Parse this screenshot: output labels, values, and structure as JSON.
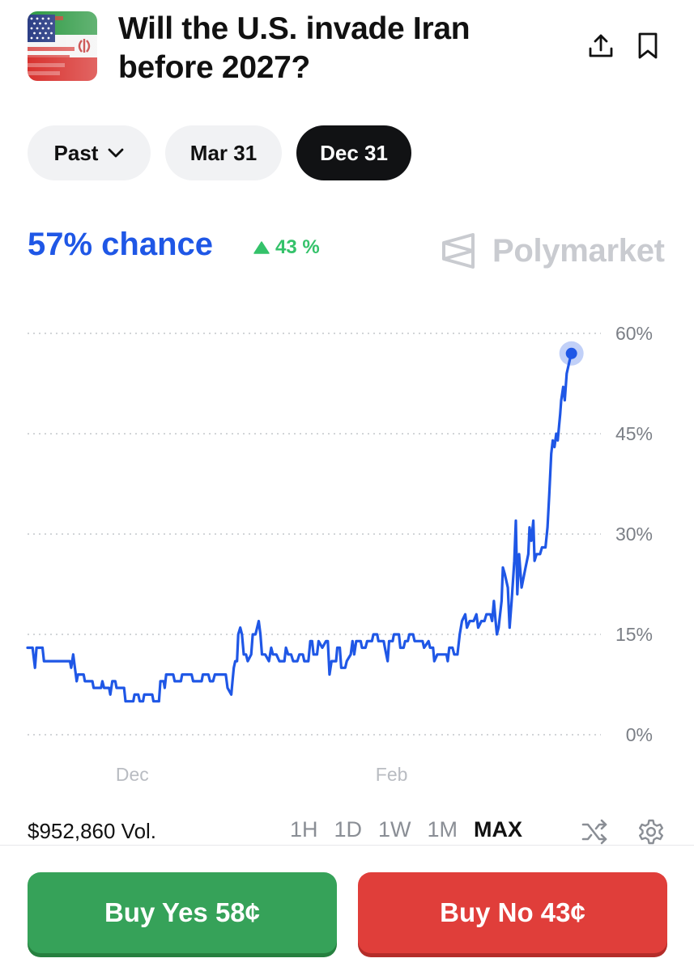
{
  "header": {
    "title": "Will the U.S. invade Iran before 2027?",
    "icon": "us-iran-flag-icon",
    "actions": [
      "share-icon",
      "bookmark-icon"
    ]
  },
  "date_filters": {
    "past_label": "Past",
    "options": [
      "Mar 31",
      "Dec 31"
    ],
    "selected": "Dec 31"
  },
  "summary": {
    "chance": "57% chance",
    "delta": "43 %",
    "delta_direction": "up",
    "brand": "Polymarket"
  },
  "colors": {
    "accent_blue": "#1f57e6",
    "positive_green": "#34c26a",
    "buy_yes": "#36a259",
    "buy_no": "#e03e3a",
    "active_pill": "#111214"
  },
  "chart_data": {
    "type": "line",
    "series": [
      {
        "values": [
          [
            0,
            13
          ],
          [
            2,
            13
          ],
          [
            3,
            10
          ],
          [
            3.6,
            13
          ],
          [
            6,
            13
          ],
          [
            6.6,
            11
          ],
          [
            17,
            11
          ],
          [
            17.5,
            10
          ],
          [
            18.3,
            12
          ],
          [
            19,
            10
          ],
          [
            19.7,
            8
          ],
          [
            20.2,
            9
          ],
          [
            22.5,
            9
          ],
          [
            23,
            8
          ],
          [
            26,
            8
          ],
          [
            26.5,
            7
          ],
          [
            29.5,
            7
          ],
          [
            30,
            8
          ],
          [
            30.7,
            7
          ],
          [
            32.7,
            7
          ],
          [
            33.2,
            6
          ],
          [
            34,
            8
          ],
          [
            35.2,
            8
          ],
          [
            35.7,
            7
          ],
          [
            38.7,
            7
          ],
          [
            39.3,
            5
          ],
          [
            42.4,
            5
          ],
          [
            42.9,
            6
          ],
          [
            44.4,
            6
          ],
          [
            45,
            5
          ],
          [
            46.3,
            5
          ],
          [
            46.8,
            6
          ],
          [
            50,
            6
          ],
          [
            50.5,
            5
          ],
          [
            52.7,
            5
          ],
          [
            53.3,
            8
          ],
          [
            54.6,
            8
          ],
          [
            55,
            7
          ],
          [
            55.6,
            9
          ],
          [
            58.4,
            9
          ],
          [
            59,
            8
          ],
          [
            61.5,
            8
          ],
          [
            62,
            9
          ],
          [
            65.8,
            9
          ],
          [
            66.4,
            8
          ],
          [
            69.8,
            8
          ],
          [
            70.3,
            9
          ],
          [
            72.5,
            9
          ],
          [
            73.2,
            8
          ],
          [
            74.4,
            8
          ],
          [
            75.1,
            9
          ],
          [
            79.5,
            9
          ],
          [
            80.2,
            7
          ],
          [
            81.7,
            6
          ],
          [
            82.2,
            8
          ],
          [
            82.7,
            10
          ],
          [
            83.3,
            11
          ],
          [
            84,
            11
          ],
          [
            84.5,
            15
          ],
          [
            85.3,
            16
          ],
          [
            86,
            15
          ],
          [
            86.7,
            12
          ],
          [
            87.6,
            12
          ],
          [
            88.3,
            11
          ],
          [
            89.7,
            12
          ],
          [
            90.3,
            15
          ],
          [
            91.4,
            15
          ],
          [
            92.7,
            17
          ],
          [
            93.4,
            15
          ],
          [
            94,
            12
          ],
          [
            95.3,
            12
          ],
          [
            96.8,
            11
          ],
          [
            97.7,
            13
          ],
          [
            98.4,
            12
          ],
          [
            99.8,
            12
          ],
          [
            101,
            11
          ],
          [
            103,
            11
          ],
          [
            103.6,
            13
          ],
          [
            104.5,
            12
          ],
          [
            105.7,
            12
          ],
          [
            106.5,
            11
          ],
          [
            108.2,
            11
          ],
          [
            109,
            12
          ],
          [
            110.4,
            12
          ],
          [
            111,
            11
          ],
          [
            112.6,
            11
          ],
          [
            113.4,
            14
          ],
          [
            114.1,
            14
          ],
          [
            114.7,
            12
          ],
          [
            116.1,
            12
          ],
          [
            116.7,
            14
          ],
          [
            118.2,
            13
          ],
          [
            119.7,
            14
          ],
          [
            120.4,
            14
          ],
          [
            121.1,
            9
          ],
          [
            121.9,
            11
          ],
          [
            123.7,
            11
          ],
          [
            124.2,
            13
          ],
          [
            125.2,
            13
          ],
          [
            125.8,
            10
          ],
          [
            127.4,
            10
          ],
          [
            128,
            11
          ],
          [
            129.6,
            12
          ],
          [
            130.3,
            14
          ],
          [
            131,
            12
          ],
          [
            131.8,
            14
          ],
          [
            133.6,
            14
          ],
          [
            134.1,
            13
          ],
          [
            135.5,
            13
          ],
          [
            136.2,
            14
          ],
          [
            138.1,
            14
          ],
          [
            138.7,
            15
          ],
          [
            140.2,
            15
          ],
          [
            140.7,
            14
          ],
          [
            142.8,
            14
          ],
          [
            143.3,
            13
          ],
          [
            144.4,
            11
          ],
          [
            145,
            14
          ],
          [
            146.4,
            14
          ],
          [
            146.9,
            15
          ],
          [
            148.9,
            15
          ],
          [
            149.5,
            13
          ],
          [
            150.8,
            13
          ],
          [
            151.4,
            14
          ],
          [
            152.5,
            14
          ],
          [
            153.1,
            15
          ],
          [
            154.6,
            15
          ],
          [
            155.2,
            14
          ],
          [
            158.4,
            14
          ],
          [
            159,
            13
          ],
          [
            160.8,
            14
          ],
          [
            161.4,
            13
          ],
          [
            162.6,
            13
          ],
          [
            163.1,
            11
          ],
          [
            164.3,
            12
          ],
          [
            166.5,
            12
          ],
          [
            168,
            12
          ],
          [
            168.5,
            11
          ],
          [
            169.1,
            13
          ],
          [
            170.4,
            13
          ],
          [
            171.1,
            12
          ],
          [
            172.4,
            12
          ],
          [
            173.3,
            15
          ],
          [
            174.2,
            17
          ],
          [
            175.5,
            18
          ],
          [
            176.2,
            16
          ],
          [
            177.3,
            17
          ],
          [
            178.9,
            17
          ],
          [
            180,
            18
          ],
          [
            180.7,
            16
          ],
          [
            182,
            17
          ],
          [
            183.2,
            17
          ],
          [
            184,
            18
          ],
          [
            185.6,
            18
          ],
          [
            186.3,
            17
          ],
          [
            187,
            20
          ],
          [
            187.7,
            17
          ],
          [
            188.2,
            15
          ],
          [
            188.9,
            16
          ],
          [
            190.1,
            20
          ],
          [
            190.6,
            25
          ],
          [
            191.4,
            24
          ],
          [
            192.6,
            22
          ],
          [
            193.3,
            16
          ],
          [
            194.1,
            20
          ],
          [
            195.2,
            26
          ],
          [
            195.8,
            32
          ],
          [
            196.4,
            21
          ],
          [
            197.1,
            27
          ],
          [
            198.1,
            22
          ],
          [
            199.7,
            25
          ],
          [
            200.8,
            27
          ],
          [
            201.3,
            31
          ],
          [
            202,
            29
          ],
          [
            202.8,
            32
          ],
          [
            203.3,
            26
          ],
          [
            204.1,
            27
          ],
          [
            205.5,
            27
          ],
          [
            206.3,
            28
          ],
          [
            207.7,
            28
          ],
          [
            208.5,
            31
          ],
          [
            209.2,
            36
          ],
          [
            210,
            42
          ],
          [
            210.6,
            44
          ],
          [
            211.3,
            43
          ],
          [
            212,
            45
          ],
          [
            212.6,
            44
          ],
          [
            213.6,
            48
          ],
          [
            214,
            50
          ],
          [
            214.8,
            52
          ],
          [
            215.4,
            50
          ],
          [
            216.2,
            54
          ],
          [
            217.4,
            56
          ],
          [
            218.1,
            57
          ]
        ]
      }
    ],
    "x_ticks": [
      {
        "label": "Dec",
        "x": 42
      },
      {
        "label": "Feb",
        "x": 146
      }
    ],
    "xlim": [
      0,
      226
    ],
    "ylim": [
      0,
      60
    ],
    "y_ticks": [
      0,
      15,
      30,
      45,
      60
    ],
    "y_tick_labels": [
      "0%",
      "15%",
      "30%",
      "45%",
      "60%"
    ],
    "grid": true,
    "last_point_marker": true
  },
  "footer": {
    "volume": "$952,860 Vol.",
    "ranges": [
      "1H",
      "1D",
      "1W",
      "1M",
      "MAX"
    ],
    "selected_range": "MAX",
    "icons": [
      "shuffle-icon",
      "settings-gear-icon"
    ]
  },
  "actions": {
    "buy_yes": "Buy Yes 58¢",
    "buy_no": "Buy No 43¢"
  }
}
